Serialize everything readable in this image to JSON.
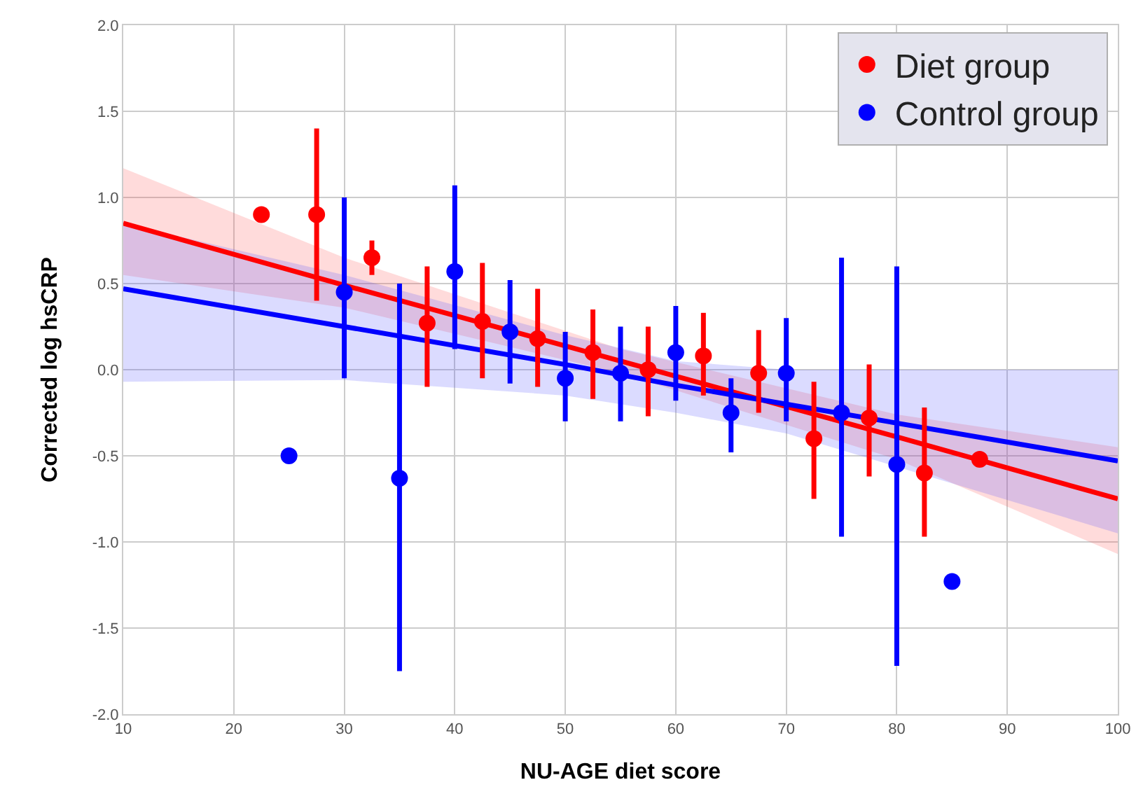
{
  "chart_data": {
    "type": "scatter",
    "xlabel": "NU-AGE diet score",
    "ylabel": "Corrected log hsCRP",
    "xlim": [
      10,
      100
    ],
    "ylim": [
      -2,
      2
    ],
    "xticks": [
      10,
      20,
      30,
      40,
      50,
      60,
      70,
      80,
      90,
      100
    ],
    "yticks": [
      {
        "value": -2,
        "label": "-2.0"
      },
      {
        "value": -1.5,
        "label": "-1.5"
      },
      {
        "value": -1,
        "label": "-1.0"
      },
      {
        "value": -0.5,
        "label": "-0.5"
      },
      {
        "value": 0,
        "label": "0.0"
      },
      {
        "value": 0.5,
        "label": "0.5"
      },
      {
        "value": 1,
        "label": "1.0"
      },
      {
        "value": 1.5,
        "label": "1.5"
      },
      {
        "value": 2,
        "label": "2.0"
      }
    ],
    "grid": true,
    "legend": "top right",
    "marker": "circle",
    "series": [
      {
        "type": "line",
        "marker": "none",
        "color": "#ff0000",
        "x": [
          10,
          30,
          55,
          80,
          100
        ],
        "values": [
          0.85,
          0.49,
          0.05,
          -0.39,
          -0.75
        ],
        "lower": [
          0.55,
          0.36,
          -0.02,
          -0.52,
          -1.07
        ],
        "upper": [
          1.17,
          0.65,
          0.12,
          -0.26,
          -0.45
        ]
      },
      {
        "type": "line",
        "marker": "none",
        "color": "#0000ff",
        "x": [
          10,
          30,
          50,
          60,
          70,
          100
        ],
        "values": [
          0.47,
          0.25,
          0.03,
          -0.09,
          -0.2,
          -0.53
        ],
        "lower": [
          -0.07,
          -0.06,
          -0.15,
          -0.25,
          -0.37,
          -0.95
        ],
        "upper": [
          0.85,
          0.55,
          0.2,
          0.05,
          0,
          0
        ]
      },
      {
        "name": "Diet group",
        "color": "#ff0000",
        "x": [
          22.5,
          27.5,
          32.5,
          37.5,
          42.5,
          47.5,
          52.5,
          57.5,
          62.5,
          67.5,
          72.5,
          77.5,
          82.5,
          87.5
        ],
        "values": [
          0.9,
          0.9,
          0.65,
          0.27,
          0.28,
          0.18,
          0.1,
          0,
          0.08,
          -0.02,
          -0.4,
          -0.28,
          -0.6,
          -0.52
        ],
        "errors": [
          null,
          [
            0.4,
            1.4
          ],
          [
            0.55,
            0.75
          ],
          [
            -0.1,
            0.6
          ],
          [
            -0.05,
            0.62
          ],
          [
            -0.1,
            0.47
          ],
          [
            -0.17,
            0.35
          ],
          [
            -0.27,
            0.25
          ],
          [
            -0.15,
            0.33
          ],
          [
            -0.25,
            0.23
          ],
          [
            -0.75,
            -0.07
          ],
          [
            -0.62,
            0.03
          ],
          [
            -0.97,
            -0.22
          ],
          null
        ]
      },
      {
        "name": "Control group",
        "color": "#0000ff",
        "x": [
          25,
          30,
          35,
          40,
          45,
          50,
          55,
          60,
          65,
          70,
          75,
          80,
          85
        ],
        "values": [
          -0.5,
          0.45,
          -0.63,
          0.57,
          0.22,
          -0.05,
          -0.02,
          0.1,
          -0.25,
          -0.02,
          -0.25,
          -0.55,
          -1.23
        ],
        "errors": [
          null,
          [
            -0.05,
            1.0
          ],
          [
            -1.75,
            0.5
          ],
          [
            0.12,
            1.07
          ],
          [
            -0.08,
            0.52
          ],
          [
            -0.3,
            0.22
          ],
          [
            -0.3,
            0.25
          ],
          [
            -0.18,
            0.37
          ],
          [
            -0.48,
            -0.05
          ],
          [
            -0.3,
            0.3
          ],
          [
            -0.97,
            0.65
          ],
          [
            -1.72,
            0.6
          ],
          null
        ]
      }
    ]
  }
}
